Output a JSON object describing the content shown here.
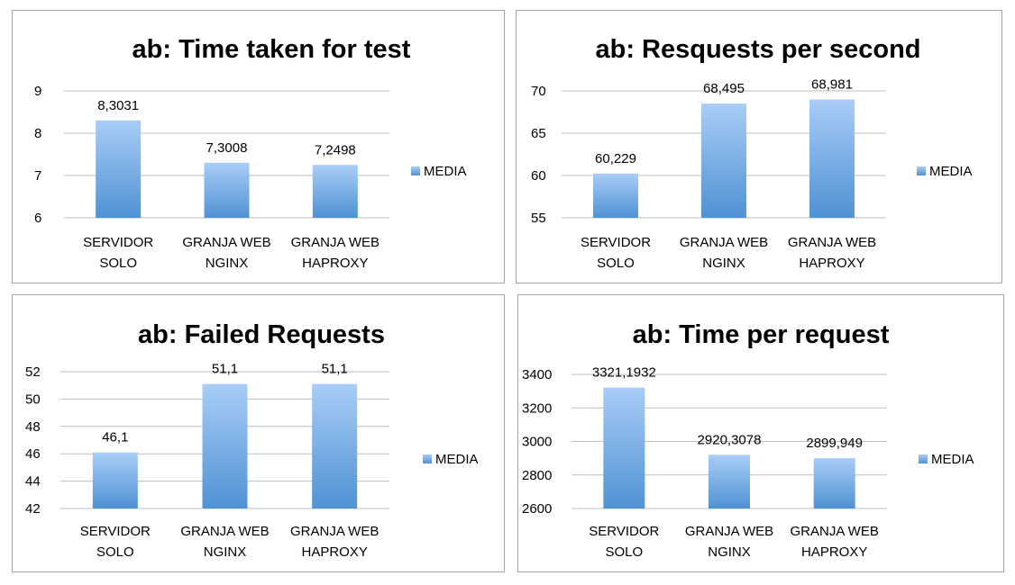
{
  "chart_data": [
    {
      "type": "bar",
      "title": "ab: Time taken for test",
      "categories": [
        [
          "SERVIDOR",
          "SOLO"
        ],
        [
          "GRANJA WEB",
          "NGINX"
        ],
        [
          "GRANJA WEB",
          "HAPROXY"
        ]
      ],
      "series": [
        {
          "name": "MEDIA",
          "values": [
            8.3031,
            7.3008,
            7.2498
          ]
        }
      ],
      "data_labels": [
        "8,3031",
        "7,3008",
        "7,2498"
      ],
      "ylim": [
        6,
        9
      ],
      "yticks": [
        6,
        7,
        8,
        9
      ],
      "ytick_labels": [
        "6",
        "7",
        "8",
        "9"
      ],
      "grid": true,
      "legend": "right"
    },
    {
      "type": "bar",
      "title": "ab: Resquests per second",
      "categories": [
        [
          "SERVIDOR",
          "SOLO"
        ],
        [
          "GRANJA WEB",
          "NGINX"
        ],
        [
          "GRANJA WEB",
          "HAPROXY"
        ]
      ],
      "series": [
        {
          "name": "MEDIA",
          "values": [
            60.229,
            68.495,
            68.981
          ]
        }
      ],
      "data_labels": [
        "60,229",
        "68,495",
        "68,981"
      ],
      "ylim": [
        55,
        70
      ],
      "yticks": [
        55,
        60,
        65,
        70
      ],
      "ytick_labels": [
        "55",
        "60",
        "65",
        "70"
      ],
      "grid": true,
      "legend": "right"
    },
    {
      "type": "bar",
      "title": "ab: Failed Requests",
      "categories": [
        [
          "SERVIDOR",
          "SOLO"
        ],
        [
          "GRANJA WEB",
          "NGINX"
        ],
        [
          "GRANJA WEB",
          "HAPROXY"
        ]
      ],
      "series": [
        {
          "name": "MEDIA",
          "values": [
            46.1,
            51.1,
            51.1
          ]
        }
      ],
      "data_labels": [
        "46,1",
        "51,1",
        "51,1"
      ],
      "ylim": [
        42,
        52
      ],
      "yticks": [
        42,
        44,
        46,
        48,
        50,
        52
      ],
      "ytick_labels": [
        "42",
        "44",
        "46",
        "48",
        "50",
        "52"
      ],
      "grid": true,
      "legend": "right"
    },
    {
      "type": "bar",
      "title": "ab: Time per request",
      "categories": [
        [
          "SERVIDOR",
          "SOLO"
        ],
        [
          "GRANJA WEB",
          "NGINX"
        ],
        [
          "GRANJA WEB",
          "HAPROXY"
        ]
      ],
      "series": [
        {
          "name": "MEDIA",
          "values": [
            3321.1932,
            2920.3078,
            2899.949
          ]
        }
      ],
      "data_labels": [
        "3321,1932",
        "2920,3078",
        "2899,949"
      ],
      "ylim": [
        2600,
        3400
      ],
      "yticks": [
        2600,
        2800,
        3000,
        3200,
        3400
      ],
      "ytick_labels": [
        "2600",
        "2800",
        "3000",
        "3200",
        "3400"
      ],
      "grid": true,
      "legend": "right"
    }
  ],
  "colors": {
    "bar_top": "#a9cdf7",
    "bar_bottom": "#4f92d4",
    "grid": "#bfbfbf",
    "border": "#a6a6a6"
  }
}
